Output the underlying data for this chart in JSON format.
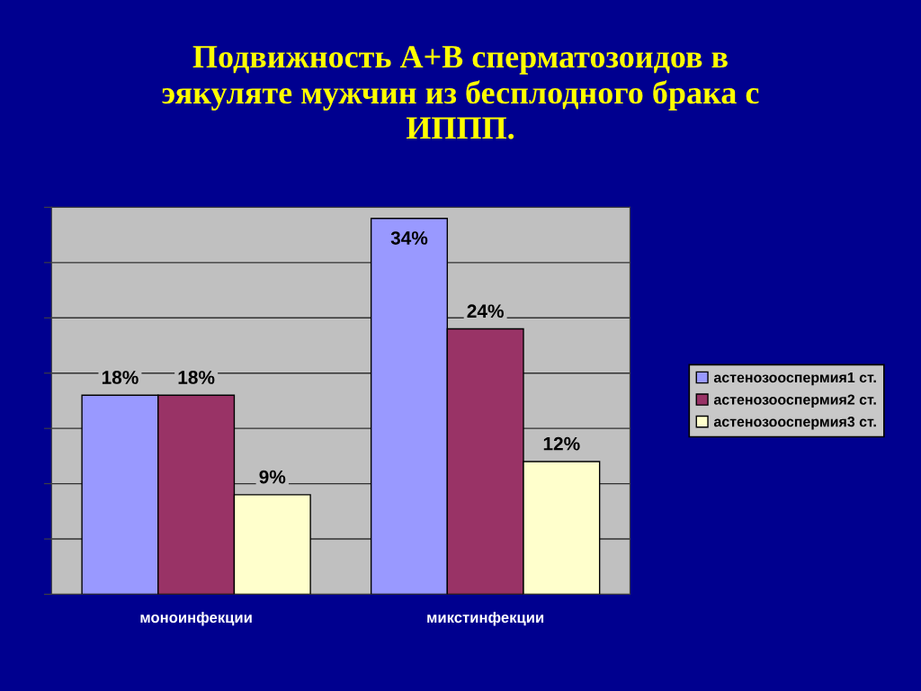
{
  "chart_data": {
    "type": "bar",
    "title": "Подвижность А+В сперматозоидов в\nэякуляте мужчин из бесплодного брака с\nИППП.",
    "categories": [
      "моноинфекции",
      "микстинфекции"
    ],
    "series": [
      {
        "name": "астенозооспермия1 ст.",
        "color": "#9999ff",
        "values": [
          18,
          34
        ],
        "value_labels": [
          "18%",
          "34%"
        ]
      },
      {
        "name": "астенозооспермия2 ст.",
        "color": "#993366",
        "values": [
          18,
          24
        ],
        "value_labels": [
          "18%",
          "24%"
        ]
      },
      {
        "name": "астенозооспермия3 ст.",
        "color": "#ffffcc",
        "values": [
          9,
          12
        ],
        "value_labels": [
          "9%",
          "12%"
        ]
      }
    ],
    "ylim": [
      0,
      35
    ],
    "yticks": [
      {
        "value": 0,
        "label": null
      },
      {
        "value": 5,
        "label": null
      },
      {
        "value": 10,
        "label": null
      },
      {
        "value": 15,
        "label": null
      },
      {
        "value": 20,
        "label": null
      },
      {
        "value": 25,
        "label": null
      },
      {
        "value": 30,
        "label": null
      },
      {
        "value": 35,
        "label": null
      }
    ],
    "grid": "y",
    "legend": "right",
    "tick_labels": "x"
  }
}
